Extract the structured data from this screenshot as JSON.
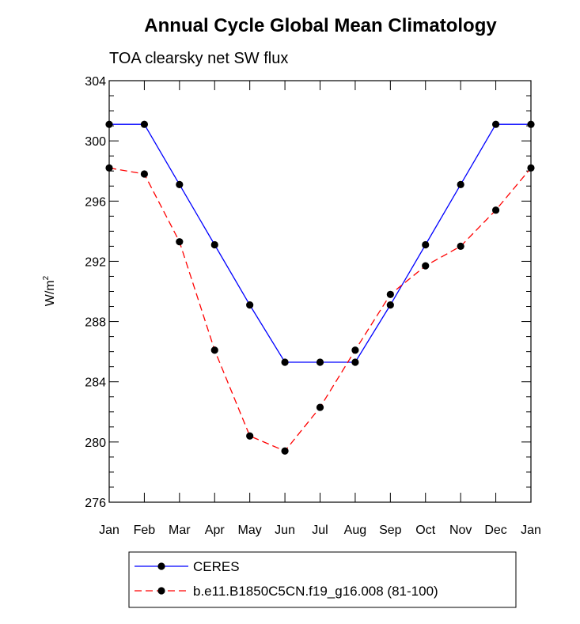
{
  "chart_data": {
    "type": "line",
    "title": "Annual Cycle Global Mean Climatology",
    "subtitle": "TOA clearsky net SW flux",
    "ylabel": "W/m",
    "ylabel_superscript": "2",
    "xlabel": "",
    "categories": [
      "Jan",
      "Feb",
      "Mar",
      "Apr",
      "May",
      "Jun",
      "Jul",
      "Aug",
      "Sep",
      "Oct",
      "Nov",
      "Dec",
      "Jan"
    ],
    "ylim": [
      276,
      304
    ],
    "yticks": [
      276,
      280,
      284,
      288,
      292,
      296,
      300,
      304
    ],
    "ytick_labels": [
      "276",
      "280",
      "284",
      "288",
      "292",
      "296",
      "300",
      "304"
    ],
    "series": [
      {
        "name": "CERES",
        "color": "#0000ff",
        "dash": "solid",
        "values": [
          301.1,
          301.1,
          297.1,
          293.1,
          289.1,
          285.3,
          285.3,
          285.3,
          289.1,
          293.1,
          297.1,
          301.1,
          301.1
        ]
      },
      {
        "name": "b.e11.B1850C5CN.f19_g16.008 (81-100)",
        "color": "#ff0000",
        "dash": "dashed",
        "values": [
          298.2,
          297.8,
          293.3,
          286.1,
          280.4,
          279.4,
          282.3,
          286.1,
          289.8,
          291.7,
          293.0,
          295.4,
          298.2
        ]
      }
    ],
    "grid": false,
    "legend_position": "bottom"
  }
}
